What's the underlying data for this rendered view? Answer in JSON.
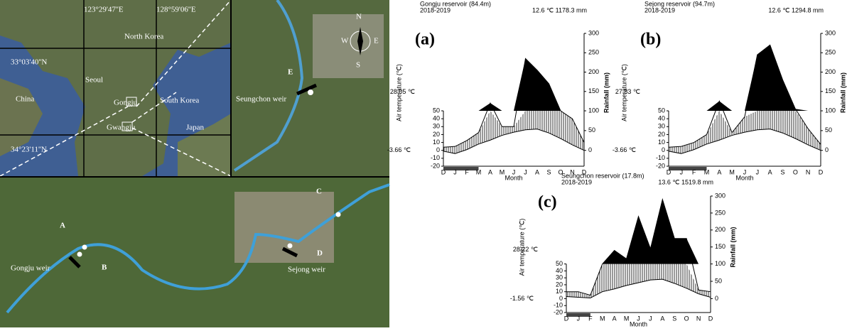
{
  "chart_data": [
    {
      "type": "climate",
      "panel": "(a)",
      "title": "Gongju reservoir (84.4m)",
      "subtitle": "2018-2019",
      "summary": "12.6 ℃ 1178.3 mm",
      "max_label": "28.05 ℃",
      "min_label": "-3.66 ℃",
      "xlabel": "Month",
      "ylabel": "Air temperature (℃)",
      "y2label": "Rainfall (mm)",
      "categories": [
        "D",
        "J",
        "F",
        "M",
        "A",
        "M",
        "J",
        "J",
        "A",
        "S",
        "O",
        "N",
        "D"
      ],
      "series": [
        {
          "color": "#000000",
          "values": [
            -1,
            -4,
            1,
            8,
            13,
            19,
            23,
            26,
            27,
            22,
            15,
            7,
            0
          ]
        },
        {
          "color": "#000000",
          "axis": "y2",
          "values": [
            8,
            10,
            25,
            45,
            120,
            60,
            60,
            235,
            205,
            170,
            100,
            80,
            20
          ]
        }
      ],
      "ylim": [
        -20,
        50
      ],
      "yticks": [
        -20,
        -10,
        0,
        10,
        20,
        30,
        40,
        50
      ],
      "y2lim": [
        0,
        300
      ],
      "y2ticks": [
        0,
        50,
        100,
        150,
        200,
        250,
        300
      ]
    },
    {
      "type": "climate",
      "panel": "(b)",
      "title": "Sejong reservoir (94.7m)",
      "subtitle": "2018-2019",
      "summary": "12.6 ℃ 1294.8 mm",
      "max_label": "27.83 ℃",
      "min_label": "-3.66 ℃",
      "xlabel": "Month",
      "ylabel": "Air temperature (℃)",
      "y2label": "Rainfall (mm)",
      "categories": [
        "D",
        "J",
        "F",
        "M",
        "A",
        "M",
        "J",
        "J",
        "A",
        "S",
        "O",
        "N",
        "D"
      ],
      "series": [
        {
          "color": "#000000",
          "values": [
            -1,
            -4,
            1,
            8,
            13,
            19,
            23,
            26,
            27,
            22,
            15,
            7,
            0
          ]
        },
        {
          "color": "#000000",
          "axis": "y2",
          "values": [
            8,
            10,
            20,
            40,
            125,
            45,
            85,
            245,
            270,
            180,
            105,
            55,
            15
          ]
        }
      ],
      "ylim": [
        -20,
        50
      ],
      "yticks": [
        -20,
        -10,
        0,
        10,
        20,
        30,
        40,
        50
      ],
      "y2lim": [
        0,
        300
      ],
      "y2ticks": [
        0,
        50,
        100,
        150,
        200,
        250,
        300
      ]
    },
    {
      "type": "climate",
      "panel": "(c)",
      "title": "Seungchon reservoir (17.8m)",
      "subtitle": "2018-2019",
      "summary": "13.6 ℃ 1519.8 mm",
      "max_label": "28.22 ℃",
      "min_label": "-1.56 ℃",
      "xlabel": "Month",
      "ylabel": "Air temperature (℃)",
      "y2label": "Rainfall (mm)",
      "categories": [
        "D",
        "J",
        "F",
        "M",
        "A",
        "M",
        "J",
        "J",
        "A",
        "S",
        "O",
        "N",
        "D"
      ],
      "series": [
        {
          "color": "#000000",
          "values": [
            3,
            2,
            1,
            10,
            14,
            19,
            23,
            27,
            28,
            22,
            15,
            7,
            2
          ]
        },
        {
          "color": "#000000",
          "axis": "y2",
          "values": [
            20,
            20,
            10,
            100,
            140,
            115,
            240,
            145,
            290,
            175,
            175,
            25,
            20
          ]
        }
      ],
      "ylim": [
        -20,
        50
      ],
      "yticks": [
        -20,
        -10,
        0,
        10,
        20,
        30,
        40,
        50
      ],
      "y2lim": [
        0,
        300
      ],
      "y2ticks": [
        0,
        50,
        100,
        150,
        200,
        250,
        300
      ]
    }
  ],
  "map": {
    "labels": [
      "123°29'47''E",
      "128°59'06''E",
      "North Korea",
      "33°03'40''N",
      "Seoul",
      "China",
      "Gongju",
      "South Korea",
      "Gwangju",
      "Japan",
      "34°23'11''N",
      "Seungchon weir",
      "E",
      "N",
      "S",
      "W",
      "E",
      "A",
      "B",
      "C",
      "D",
      "Gongju weir",
      "Sejong weir"
    ]
  }
}
